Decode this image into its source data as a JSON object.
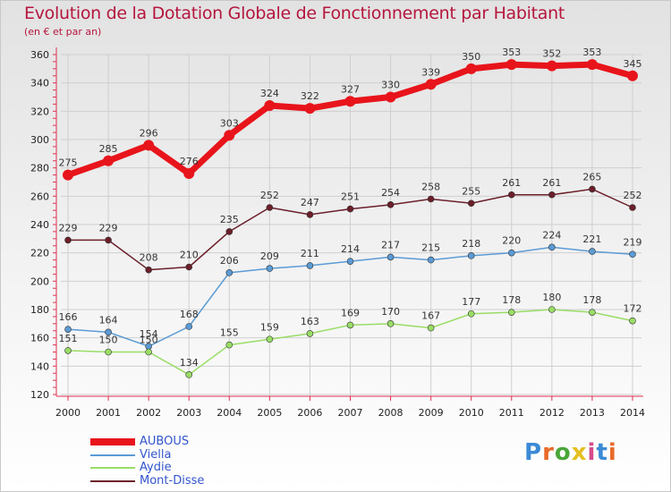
{
  "chart_data": {
    "type": "line",
    "title": "Evolution de la Dotation Globale de Fonctionnement par Habitant",
    "subtitle": "(en € et par an)",
    "categories": [
      "2000",
      "2001",
      "2002",
      "2003",
      "2004",
      "2005",
      "2006",
      "2007",
      "2008",
      "2009",
      "2010",
      "2011",
      "2012",
      "2013",
      "2014"
    ],
    "ylim": [
      120,
      360
    ],
    "yticks": [
      120,
      140,
      160,
      180,
      200,
      220,
      240,
      260,
      280,
      300,
      320,
      340,
      360
    ],
    "grid": true,
    "legend_position": "bottom-left",
    "series": [
      {
        "name": "AUBOUS",
        "color": "#e8141b",
        "values": [
          275,
          285,
          296,
          276,
          303,
          324,
          322,
          327,
          330,
          339,
          350,
          353,
          352,
          353,
          345
        ]
      },
      {
        "name": "Viella",
        "color": "#5b9bd5",
        "values": [
          166,
          164,
          154,
          168,
          206,
          209,
          211,
          214,
          217,
          215,
          218,
          220,
          224,
          221,
          219
        ]
      },
      {
        "name": "Aydie",
        "color": "#99dd66",
        "values": [
          151,
          150,
          150,
          134,
          155,
          159,
          163,
          169,
          170,
          167,
          177,
          178,
          180,
          178,
          172
        ]
      },
      {
        "name": "Mont-Disse",
        "color": "#6b1f2a",
        "values": [
          229,
          229,
          208,
          210,
          235,
          252,
          247,
          251,
          254,
          258,
          255,
          261,
          261,
          265,
          252
        ]
      }
    ]
  },
  "branding": {
    "logo_text": "Proxiti"
  }
}
